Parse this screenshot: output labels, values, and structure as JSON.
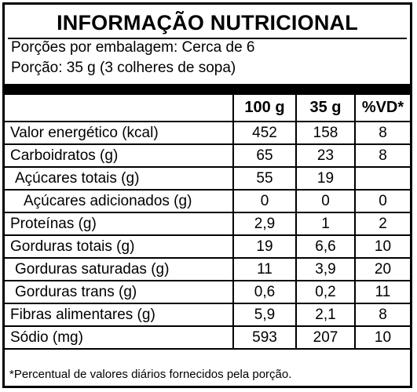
{
  "title": "INFORMAÇÃO NUTRICIONAL",
  "servings_per_package": "Porções por embalagem: Cerca de 6",
  "serving_size": "Porção: 35 g (3 colheres de sopa)",
  "columns": [
    "100 g",
    "35 g",
    "%VD*"
  ],
  "rows": [
    {
      "name": "Valor energético (kcal)",
      "v100": "452",
      "v35": "158",
      "vd": "8",
      "indent": 0
    },
    {
      "name": "Carboidratos (g)",
      "v100": "65",
      "v35": "23",
      "vd": "8",
      "indent": 0
    },
    {
      "name": "Açúcares totais (g)",
      "v100": "55",
      "v35": "19",
      "vd": "",
      "indent": 1
    },
    {
      "name": "Açúcares adicionados (g)",
      "v100": "0",
      "v35": "0",
      "vd": "0",
      "indent": 2
    },
    {
      "name": "Proteínas (g)",
      "v100": "2,9",
      "v35": "1",
      "vd": "2",
      "indent": 0
    },
    {
      "name": "Gorduras totais (g)",
      "v100": "19",
      "v35": "6,6",
      "vd": "10",
      "indent": 0
    },
    {
      "name": "Gorduras saturadas (g)",
      "v100": "11",
      "v35": "3,9",
      "vd": "20",
      "indent": 1
    },
    {
      "name": "Gorduras trans (g)",
      "v100": "0,6",
      "v35": "0,2",
      "vd": "11",
      "indent": 1
    },
    {
      "name": "Fibras alimentares (g)",
      "v100": "5,9",
      "v35": "2,1",
      "vd": "8",
      "indent": 0
    },
    {
      "name": "Sódio (mg)",
      "v100": "593",
      "v35": "207",
      "vd": "10",
      "indent": 0
    }
  ],
  "footnote": "*Percentual de valores diários fornecidos pela porção."
}
